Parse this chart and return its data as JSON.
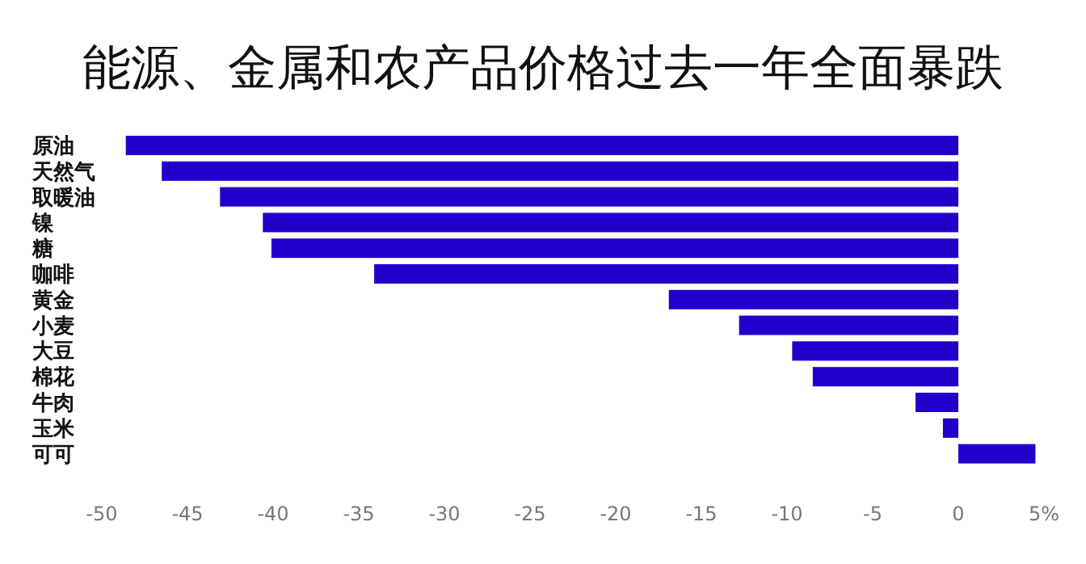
{
  "chart_data": {
    "type": "bar",
    "orientation": "horizontal",
    "title": "能源、金属和农产品价格过去一年全面暴跌",
    "categories": [
      "原油",
      "天然气",
      "取暖油",
      "镍",
      "糖",
      "咖啡",
      "黄金",
      "小麦",
      "大豆",
      "棉花",
      "牛肉",
      "玉米",
      "可可"
    ],
    "values": [
      -48.6,
      -46.5,
      -43.1,
      -40.6,
      -40.1,
      -34.1,
      -16.9,
      -12.8,
      -9.7,
      -8.5,
      -2.5,
      -0.9,
      4.5
    ],
    "color": "#2200cc",
    "xlim": [
      -50,
      5
    ],
    "xticks": [
      -50,
      -45,
      -40,
      -35,
      -30,
      -25,
      -20,
      -15,
      -10,
      -5,
      0,
      {
        "value": 5,
        "label": "5%"
      }
    ],
    "grid": false
  }
}
